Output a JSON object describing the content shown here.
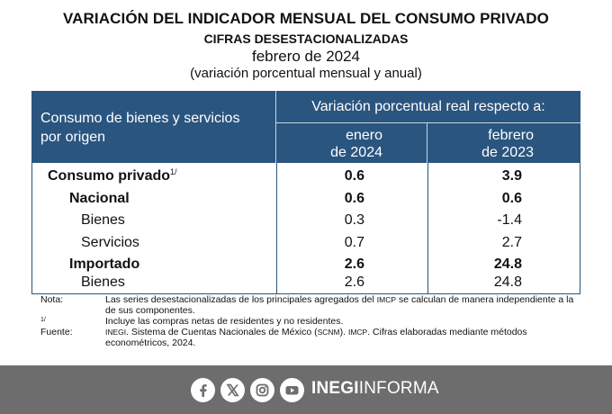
{
  "titles": {
    "main": "VARIACIÓN DEL INDICADOR MENSUAL DEL CONSUMO PRIVADO",
    "sub": "CIFRAS DESESTACIONALIZADAS",
    "period": "febrero de 2024",
    "unit": "(variación porcentual mensual y anual)"
  },
  "table": {
    "header_origin_line1": "Consumo de bienes y servicios",
    "header_origin_line2": "por origen",
    "header_variation": "Variación porcentual real respecto a:",
    "col1_line1": "enero",
    "col1_line2": "de 2024",
    "col2_line1": "febrero",
    "col2_line2": "de 2023",
    "rows": [
      {
        "label": "Consumo privado",
        "sup": "1/",
        "v1": "0.6",
        "v2": "3.9"
      },
      {
        "label": "Nacional",
        "v1": "0.6",
        "v2": "0.6"
      },
      {
        "label": "Bienes",
        "v1": "0.3",
        "v2": "-1.4"
      },
      {
        "label": "Servicios",
        "v1": "0.7",
        "v2": "2.7"
      },
      {
        "label": "Importado",
        "v1": "2.6",
        "v2": "24.8"
      },
      {
        "label": "Bienes",
        "v1": "2.6",
        "v2": "24.8"
      }
    ]
  },
  "notes": {
    "nota_label": "Nota:",
    "nota_text_a": "Las series desestacionalizadas de los principales agregados del ",
    "nota_imcp": "IMCP",
    "nota_text_b": " se calculan de manera independiente a la de sus componentes.",
    "fn_label": "1/",
    "fn_text": "Incluye las compras netas de residentes y no residentes.",
    "fuente_label": "Fuente:",
    "fuente_inegi": "INEGI",
    "fuente_text_a": ". Sistema de Cuentas Nacionales de México (",
    "fuente_scnm": "SCNM",
    "fuente_text_b": "). ",
    "fuente_imcp": "IMCP",
    "fuente_text_c": ". Cifras elaboradas mediante métodos econométricos, 2024."
  },
  "footer": {
    "brand_bold": "INEGI",
    "brand_light": "INFORMA",
    "icons": [
      "facebook-icon",
      "x-icon",
      "instagram-icon",
      "youtube-icon"
    ],
    "bg_color": "#6d6d6d"
  },
  "colors": {
    "header_bg": "#2a557f"
  }
}
